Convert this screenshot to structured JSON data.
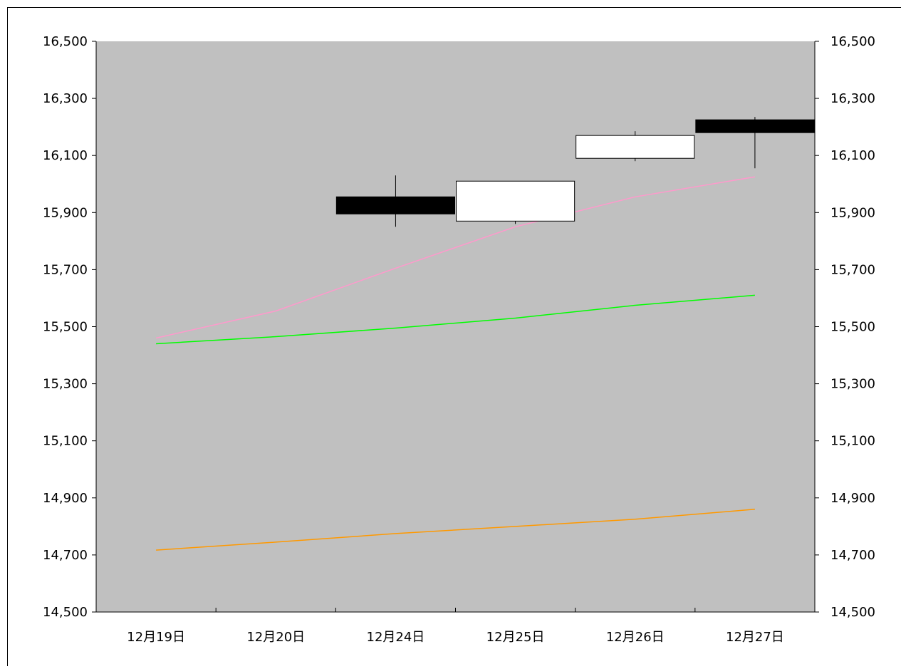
{
  "chart_data": {
    "type": "candlestick",
    "categories": [
      "12月19日",
      "12月20日",
      "12月24日",
      "12月25日",
      "12月26日",
      "12月27日"
    ],
    "ylim": [
      14500,
      16500
    ],
    "yticks": [
      "14,500",
      "14,700",
      "14,900",
      "15,100",
      "15,300",
      "15,500",
      "15,700",
      "15,900",
      "16,100",
      "16,300",
      "16,500"
    ],
    "grid": false,
    "plot_background": "#C0C0C0",
    "candles": [
      {
        "category": "12月24日",
        "open": 15955,
        "close": 15895,
        "high": 16030,
        "low": 15850
      },
      {
        "category": "12月25日",
        "open": 15870,
        "close": 16010,
        "high": 16010,
        "low": 15860
      },
      {
        "category": "12月26日",
        "open": 16090,
        "close": 16170,
        "high": 16185,
        "low": 16080
      },
      {
        "category": "12月27日",
        "open": 16225,
        "close": 16180,
        "high": 16235,
        "low": 16055
      }
    ],
    "series": [
      {
        "color": "#FF99CC",
        "values": [
          15460,
          15555,
          15705,
          15850,
          15955,
          16025
        ]
      },
      {
        "color": "#00FF00",
        "values": [
          15440,
          15465,
          15495,
          15530,
          15575,
          15610
        ]
      },
      {
        "color": "#FF9900",
        "values": [
          14717,
          14745,
          14775,
          14800,
          14825,
          14860
        ]
      }
    ],
    "colors": {
      "bear_candle": "#000000",
      "bull_candle": "#FFFFFF",
      "axis": "#000000"
    }
  }
}
